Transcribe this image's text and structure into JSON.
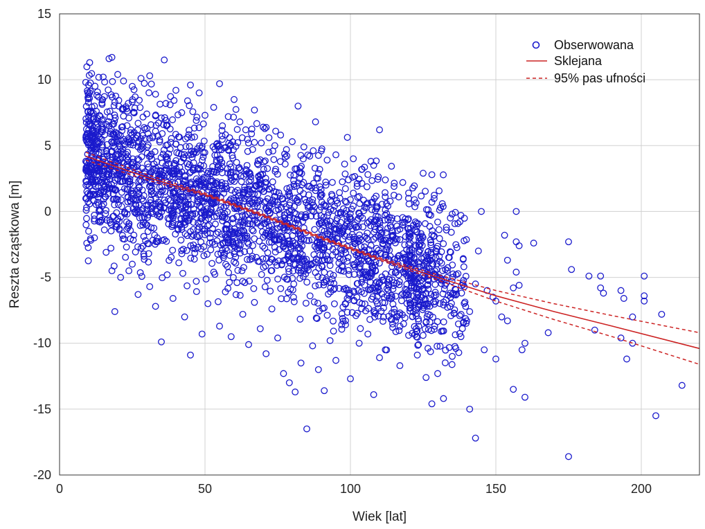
{
  "chart_data": {
    "type": "scatter",
    "xlabel": "Wiek [lat]",
    "ylabel": "Reszta cząstkowa [m]",
    "xlim": [
      0,
      220
    ],
    "ylim": [
      -20,
      15
    ],
    "x_ticks": [
      0,
      50,
      100,
      150,
      200
    ],
    "y_ticks": [
      -20,
      -15,
      -10,
      -5,
      0,
      5,
      10,
      15
    ],
    "x_tick_labels": [
      "0",
      "50",
      "100",
      "150",
      "200"
    ],
    "y_tick_labels": [
      "-20",
      "-15",
      "-10",
      "-5",
      "0",
      "5",
      "10",
      "15"
    ],
    "grid": true,
    "legend_position": "top-right",
    "legend": [
      {
        "label": "Obserwowana",
        "style": "circle-marker",
        "color": "#1a1acc"
      },
      {
        "label": "Sklejana",
        "style": "solid-line",
        "color": "#cc2222"
      },
      {
        "label": "95% pas ufności",
        "style": "dashed-line",
        "color": "#cc2222"
      }
    ],
    "colors": {
      "points": "#1a1acc",
      "fit": "#cc2222",
      "grid": "#d0d0d0"
    },
    "series": [
      {
        "name": "Obserwowana",
        "kind": "scatter",
        "description_note": "",
        "points": [
          [
            17,
            11.6
          ],
          [
            18,
            11.7
          ],
          [
            36,
            11.5
          ],
          [
            9,
            9.8
          ],
          [
            10,
            9.6
          ],
          [
            15,
            10.2
          ],
          [
            20,
            10.4
          ],
          [
            22,
            9.9
          ],
          [
            28,
            10.1
          ],
          [
            31,
            10.3
          ],
          [
            25,
            9.5
          ],
          [
            40,
            9.2
          ],
          [
            45,
            9.6
          ],
          [
            55,
            9.7
          ],
          [
            48,
            9.0
          ],
          [
            60,
            8.5
          ],
          [
            67,
            7.7
          ],
          [
            82,
            8.0
          ],
          [
            110,
            6.2
          ],
          [
            88,
            6.8
          ],
          [
            12,
            8.0
          ],
          [
            14,
            7.2
          ],
          [
            16,
            6.6
          ],
          [
            19,
            8.3
          ],
          [
            23,
            7.8
          ],
          [
            26,
            8.7
          ],
          [
            30,
            7.4
          ],
          [
            33,
            8.9
          ],
          [
            35,
            7.1
          ],
          [
            38,
            8.1
          ],
          [
            42,
            7.5
          ],
          [
            44,
            8.4
          ],
          [
            47,
            6.9
          ],
          [
            50,
            7.3
          ],
          [
            53,
            7.9
          ],
          [
            56,
            6.5
          ],
          [
            58,
            7.2
          ],
          [
            62,
            6.8
          ],
          [
            64,
            6.2
          ],
          [
            66,
            5.9
          ],
          [
            70,
            6.4
          ],
          [
            72,
            5.6
          ],
          [
            74,
            5.0
          ],
          [
            76,
            5.8
          ],
          [
            78,
            4.7
          ],
          [
            80,
            5.3
          ],
          [
            84,
            4.9
          ],
          [
            86,
            4.2
          ],
          [
            90,
            4.6
          ],
          [
            92,
            3.9
          ],
          [
            95,
            4.3
          ],
          [
            98,
            3.6
          ],
          [
            101,
            4.0
          ],
          [
            104,
            3.2
          ],
          [
            106,
            2.8
          ],
          [
            108,
            3.5
          ],
          [
            112,
            2.4
          ],
          [
            115,
            1.9
          ],
          [
            118,
            2.2
          ],
          [
            120,
            1.4
          ],
          [
            122,
            0.9
          ],
          [
            125,
            2.9
          ],
          [
            128,
            0.7
          ],
          [
            131,
            0.3
          ],
          [
            135,
            -0.2
          ],
          [
            138,
            -0.3
          ],
          [
            145,
            0.0
          ],
          [
            157,
            0.0
          ],
          [
            130,
            -0.8
          ],
          [
            133,
            -1.2
          ],
          [
            10,
            5.5
          ],
          [
            11,
            4.2
          ],
          [
            13,
            3.1
          ],
          [
            15,
            2.5
          ],
          [
            17,
            1.8
          ],
          [
            20,
            0.9
          ],
          [
            22,
            3.7
          ],
          [
            24,
            2.3
          ],
          [
            27,
            4.9
          ],
          [
            29,
            1.2
          ],
          [
            32,
            5.6
          ],
          [
            34,
            2.8
          ],
          [
            37,
            3.9
          ],
          [
            39,
            1.5
          ],
          [
            41,
            4.4
          ],
          [
            43,
            0.8
          ],
          [
            46,
            3.3
          ],
          [
            49,
            -0.5
          ],
          [
            51,
            2.6
          ],
          [
            54,
            1.1
          ],
          [
            57,
            -1.3
          ],
          [
            59,
            3.0
          ],
          [
            61,
            0.2
          ],
          [
            63,
            -2.1
          ],
          [
            65,
            1.7
          ],
          [
            68,
            -0.9
          ],
          [
            71,
            2.2
          ],
          [
            73,
            -1.8
          ],
          [
            75,
            0.5
          ],
          [
            77,
            -2.6
          ],
          [
            79,
            1.3
          ],
          [
            81,
            -3.2
          ],
          [
            83,
            -0.4
          ],
          [
            85,
            -2.2
          ],
          [
            87,
            0.9
          ],
          [
            89,
            -3.7
          ],
          [
            91,
            -1.5
          ],
          [
            93,
            -4.1
          ],
          [
            96,
            -2.4
          ],
          [
            99,
            -0.7
          ],
          [
            102,
            -3.3
          ],
          [
            105,
            -1.9
          ],
          [
            107,
            -4.6
          ],
          [
            109,
            -2.8
          ],
          [
            111,
            -5.2
          ],
          [
            113,
            -3.6
          ],
          [
            116,
            -1.1
          ],
          [
            119,
            -4.3
          ],
          [
            121,
            -5.8
          ],
          [
            124,
            -2.9
          ],
          [
            126,
            -6.2
          ],
          [
            129,
            -4.8
          ],
          [
            132,
            -7.1
          ],
          [
            134,
            -3.5
          ],
          [
            136,
            -5.9
          ],
          [
            139,
            -4.2
          ],
          [
            141,
            -7.6
          ],
          [
            143,
            -5.5
          ],
          [
            144,
            -3.0
          ],
          [
            147,
            -6.0
          ],
          [
            10,
            -1.5
          ],
          [
            12,
            -2.0
          ],
          [
            14,
            -0.8
          ],
          [
            16,
            -3.1
          ],
          [
            18,
            -4.5
          ],
          [
            19,
            -7.6
          ],
          [
            21,
            -5.0
          ],
          [
            23,
            -2.7
          ],
          [
            25,
            -4.0
          ],
          [
            27,
            -6.3
          ],
          [
            29,
            -3.4
          ],
          [
            31,
            -5.7
          ],
          [
            33,
            -7.2
          ],
          [
            35,
            -9.9
          ],
          [
            37,
            -4.8
          ],
          [
            39,
            -6.6
          ],
          [
            41,
            -3.9
          ],
          [
            43,
            -8.0
          ],
          [
            45,
            -10.9
          ],
          [
            47,
            -5.3
          ],
          [
            49,
            -9.3
          ],
          [
            51,
            -7.0
          ],
          [
            53,
            -4.6
          ],
          [
            55,
            -8.7
          ],
          [
            57,
            -6.1
          ],
          [
            59,
            -9.5
          ],
          [
            61,
            -5.4
          ],
          [
            63,
            -7.8
          ],
          [
            65,
            -10.1
          ],
          [
            67,
            -6.9
          ],
          [
            69,
            -8.9
          ],
          [
            71,
            -10.8
          ],
          [
            73,
            -7.4
          ],
          [
            75,
            -9.6
          ],
          [
            77,
            -12.3
          ],
          [
            79,
            -13.0
          ],
          [
            81,
            -13.7
          ],
          [
            83,
            -11.5
          ],
          [
            85,
            -16.5
          ],
          [
            87,
            -10.2
          ],
          [
            89,
            -12.0
          ],
          [
            91,
            -13.6
          ],
          [
            93,
            -9.8
          ],
          [
            95,
            -11.3
          ],
          [
            97,
            -8.6
          ],
          [
            100,
            -12.7
          ],
          [
            103,
            -10.0
          ],
          [
            106,
            -9.3
          ],
          [
            108,
            -13.9
          ],
          [
            110,
            -11.1
          ],
          [
            112,
            -10.5
          ],
          [
            114,
            -8.2
          ],
          [
            117,
            -11.7
          ],
          [
            120,
            -9.4
          ],
          [
            123,
            -10.9
          ],
          [
            126,
            -12.6
          ],
          [
            128,
            -14.6
          ],
          [
            130,
            -12.3
          ],
          [
            132,
            -14.2
          ],
          [
            135,
            -11.0
          ],
          [
            138,
            -9.5
          ],
          [
            140,
            -8.3
          ],
          [
            141,
            -15.0
          ],
          [
            143,
            -17.2
          ],
          [
            146,
            -10.5
          ],
          [
            150,
            -11.2
          ],
          [
            149,
            -6.5
          ],
          [
            150,
            -6.8
          ],
          [
            152,
            -8.0
          ],
          [
            154,
            -8.3
          ],
          [
            153,
            -1.8
          ],
          [
            154,
            -3.7
          ],
          [
            156,
            -5.8
          ],
          [
            157,
            -2.3
          ],
          [
            157,
            -4.6
          ],
          [
            158,
            -2.6
          ],
          [
            158,
            -5.6
          ],
          [
            156,
            -13.5
          ],
          [
            160,
            -14.1
          ],
          [
            160,
            -10.0
          ],
          [
            159,
            -10.5
          ],
          [
            163,
            -2.4
          ],
          [
            168,
            -9.2
          ],
          [
            175,
            -2.3
          ],
          [
            176,
            -4.4
          ],
          [
            175,
            -18.6
          ],
          [
            182,
            -4.9
          ],
          [
            184,
            -9.0
          ],
          [
            186,
            -5.8
          ],
          [
            186,
            -4.9
          ],
          [
            187,
            -6.2
          ],
          [
            193,
            -6.0
          ],
          [
            193,
            -9.6
          ],
          [
            194,
            -6.6
          ],
          [
            195,
            -11.2
          ],
          [
            197,
            -8.0
          ],
          [
            197,
            -10.0
          ],
          [
            201,
            -4.9
          ],
          [
            201,
            -6.4
          ],
          [
            201,
            -6.8
          ],
          [
            205,
            -15.5
          ],
          [
            207,
            -7.8
          ],
          [
            214,
            -13.2
          ]
        ]
      },
      {
        "name": "Sklejana",
        "kind": "line",
        "x": [
          9,
          30,
          50,
          70,
          90,
          110,
          130,
          150,
          170,
          190,
          220
        ],
        "y": [
          4.2,
          2.6,
          1.3,
          -0.3,
          -2.0,
          -3.6,
          -5.0,
          -6.4,
          -7.6,
          -8.7,
          -10.4
        ]
      },
      {
        "name": "95% pas ufności",
        "kind": "band",
        "x": [
          9,
          30,
          50,
          70,
          90,
          110,
          130,
          150,
          170,
          190,
          220
        ],
        "upper": [
          4.5,
          2.8,
          1.4,
          -0.2,
          -1.9,
          -3.5,
          -4.8,
          -6.0,
          -7.0,
          -7.9,
          -9.2
        ],
        "lower": [
          3.9,
          2.4,
          1.2,
          -0.4,
          -2.1,
          -3.7,
          -5.2,
          -6.8,
          -8.2,
          -9.5,
          -11.6
        ]
      }
    ]
  }
}
